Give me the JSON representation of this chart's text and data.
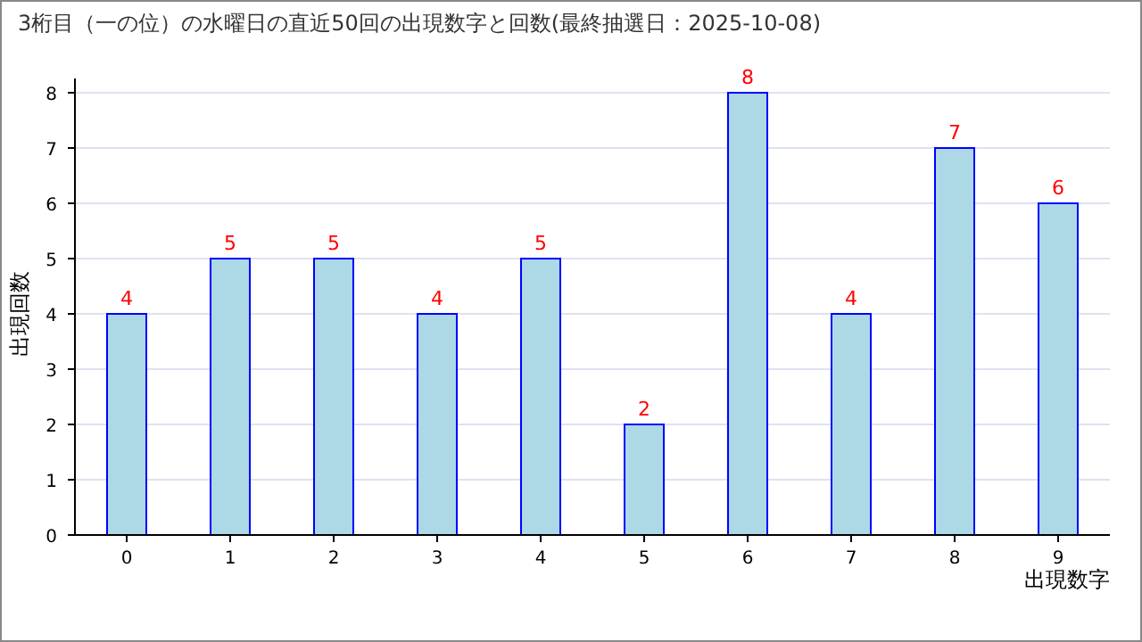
{
  "chart_data": {
    "type": "bar",
    "title": "3桁目（一の位）の水曜日の直近50回の出現数字と回数(最終抽選日：2025-10-08)",
    "xlabel": "出現数字",
    "ylabel": "出現回数",
    "categories": [
      "0",
      "1",
      "2",
      "3",
      "4",
      "5",
      "6",
      "7",
      "8",
      "9"
    ],
    "values": [
      4,
      5,
      5,
      4,
      5,
      2,
      8,
      4,
      7,
      6
    ],
    "color": "#add8e6",
    "ylim": [
      0,
      8
    ],
    "yticks": [
      0,
      1,
      2,
      3,
      4,
      5,
      6,
      7,
      8
    ],
    "grid": "y",
    "data_labels": true
  }
}
